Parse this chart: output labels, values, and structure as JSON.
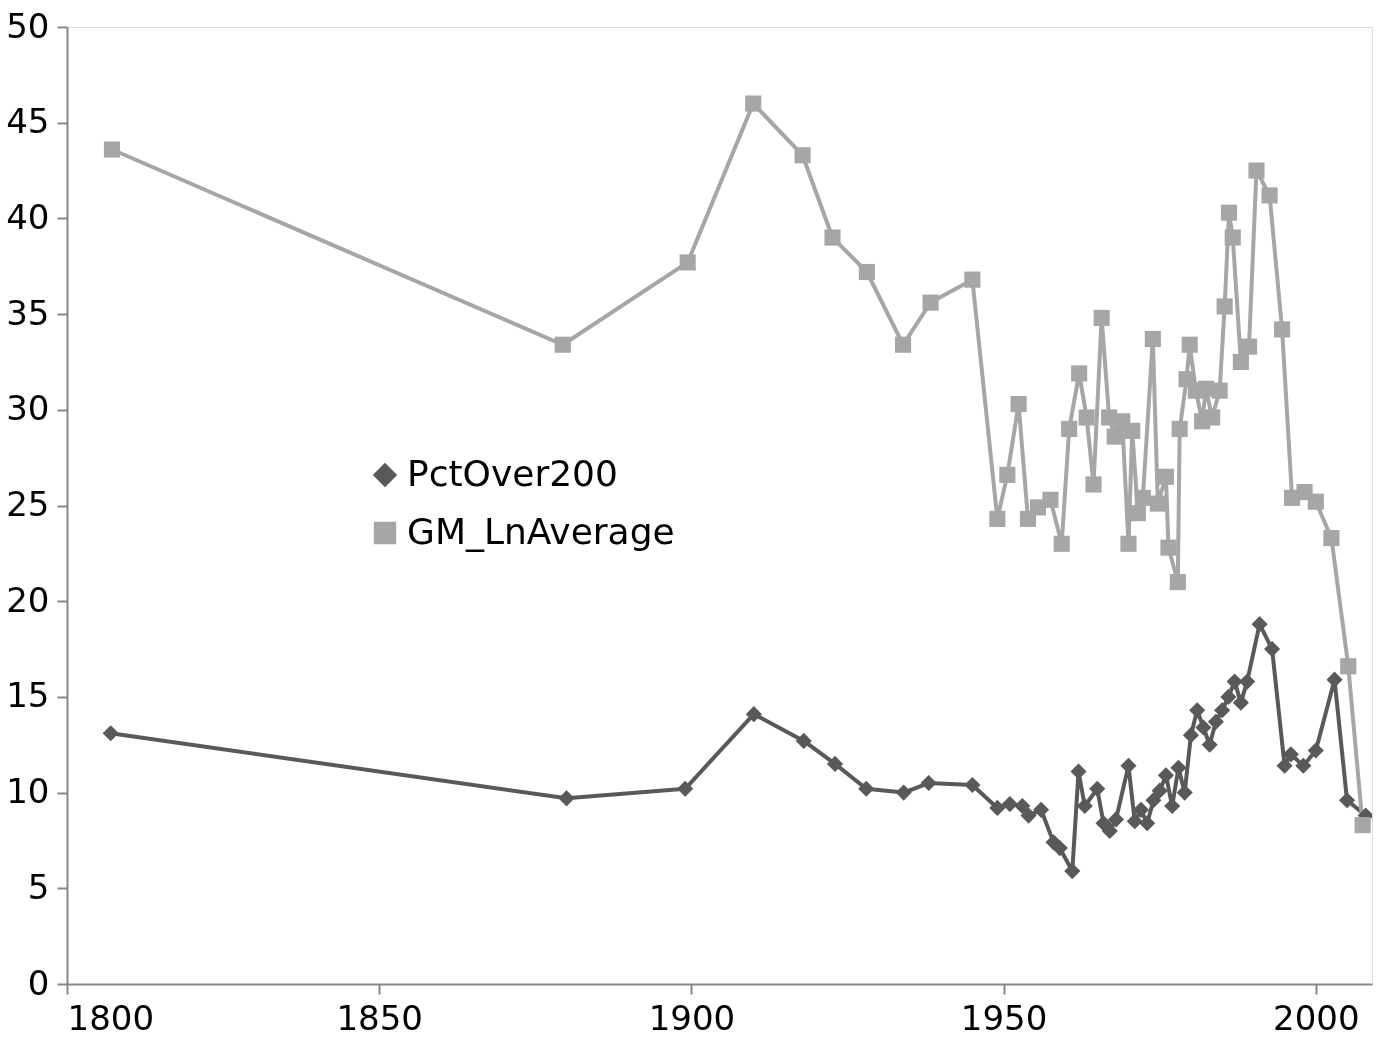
{
  "chart_data": {
    "type": "line",
    "xlim": [
      1800,
      2009
    ],
    "xticks": [
      1800,
      1850,
      1900,
      1950,
      2000
    ],
    "ylim": [
      0,
      50
    ],
    "yticks": [
      0,
      5,
      10,
      15,
      20,
      25,
      30,
      35,
      40,
      45,
      50
    ],
    "grid": false,
    "legend": "left",
    "line_style": "solid",
    "series": [
      {
        "name": "PctOver200",
        "color": "#595959",
        "marker": "diamond",
        "x": [
          1807,
          1880,
          1899,
          1910,
          1918,
          1923,
          1928,
          1934,
          1938,
          1945,
          1949,
          1951,
          1953,
          1954,
          1956,
          1958,
          1959,
          1961,
          1962,
          1963,
          1965,
          1966,
          1967,
          1968,
          1970,
          1971,
          1972,
          1973,
          1974,
          1975,
          1976,
          1977,
          1978,
          1979,
          1980,
          1981,
          1982,
          1983,
          1984,
          1985,
          1986,
          1987,
          1988,
          1989,
          1991,
          1993,
          1995,
          1996,
          1998,
          2000,
          2003,
          2005,
          2008
        ],
        "values": [
          13.1,
          9.7,
          10.2,
          14.1,
          12.7,
          11.5,
          10.2,
          10.0,
          10.5,
          10.4,
          9.2,
          9.4,
          9.3,
          8.8,
          9.1,
          7.4,
          7.1,
          5.9,
          11.1,
          9.3,
          10.2,
          8.4,
          8.0,
          8.6,
          11.4,
          8.5,
          9.1,
          8.4,
          9.6,
          10.1,
          10.9,
          9.3,
          11.3,
          10.0,
          13.0,
          14.3,
          13.4,
          12.5,
          13.7,
          14.3,
          15.0,
          15.8,
          14.7,
          15.8,
          18.8,
          17.5,
          11.4,
          12.0,
          11.4,
          12.2,
          15.9,
          9.6,
          8.8
        ]
      },
      {
        "name": "GM_LnAverage",
        "color": "#a6a6a6",
        "marker": "square",
        "x": [
          1807.2,
          1879.4,
          1899.4,
          1909.9,
          1917.8,
          1922.6,
          1928.1,
          1933.9,
          1938.3,
          1945.0,
          1949.0,
          1950.6,
          1952.4,
          1953.9,
          1955.5,
          1957.5,
          1959.3,
          1960.5,
          1962.1,
          1963.3,
          1964.4,
          1965.7,
          1966.9,
          1967.8,
          1969.0,
          1970.0,
          1970.6,
          1971.5,
          1972.3,
          1973.9,
          1974.7,
          1976.0,
          1976.4,
          1977.9,
          1978.2,
          1979.3,
          1979.8,
          1980.8,
          1981.8,
          1982.4,
          1983.4,
          1984.6,
          1985.4,
          1986.1,
          1986.7,
          1988.0,
          1989.3,
          1990.5,
          1992.6,
          1994.6,
          1996.2,
          1998.2,
          2000.0,
          2002.5,
          2005.2,
          2007.5
        ],
        "values": [
          43.6,
          33.4,
          37.7,
          46.0,
          43.3,
          39.0,
          37.2,
          33.4,
          35.6,
          36.8,
          24.3,
          26.6,
          30.3,
          24.3,
          24.9,
          25.3,
          23.0,
          29.0,
          31.9,
          29.6,
          26.1,
          34.8,
          29.6,
          28.6,
          29.4,
          23.0,
          28.9,
          24.6,
          25.4,
          33.7,
          25.1,
          26.5,
          22.8,
          21.0,
          29.0,
          31.6,
          33.4,
          31.0,
          29.4,
          31.1,
          29.6,
          31.0,
          35.4,
          40.3,
          39.0,
          32.5,
          33.3,
          42.5,
          41.2,
          34.2,
          25.4,
          25.7,
          25.2,
          23.3,
          16.6,
          8.3
        ]
      }
    ]
  }
}
